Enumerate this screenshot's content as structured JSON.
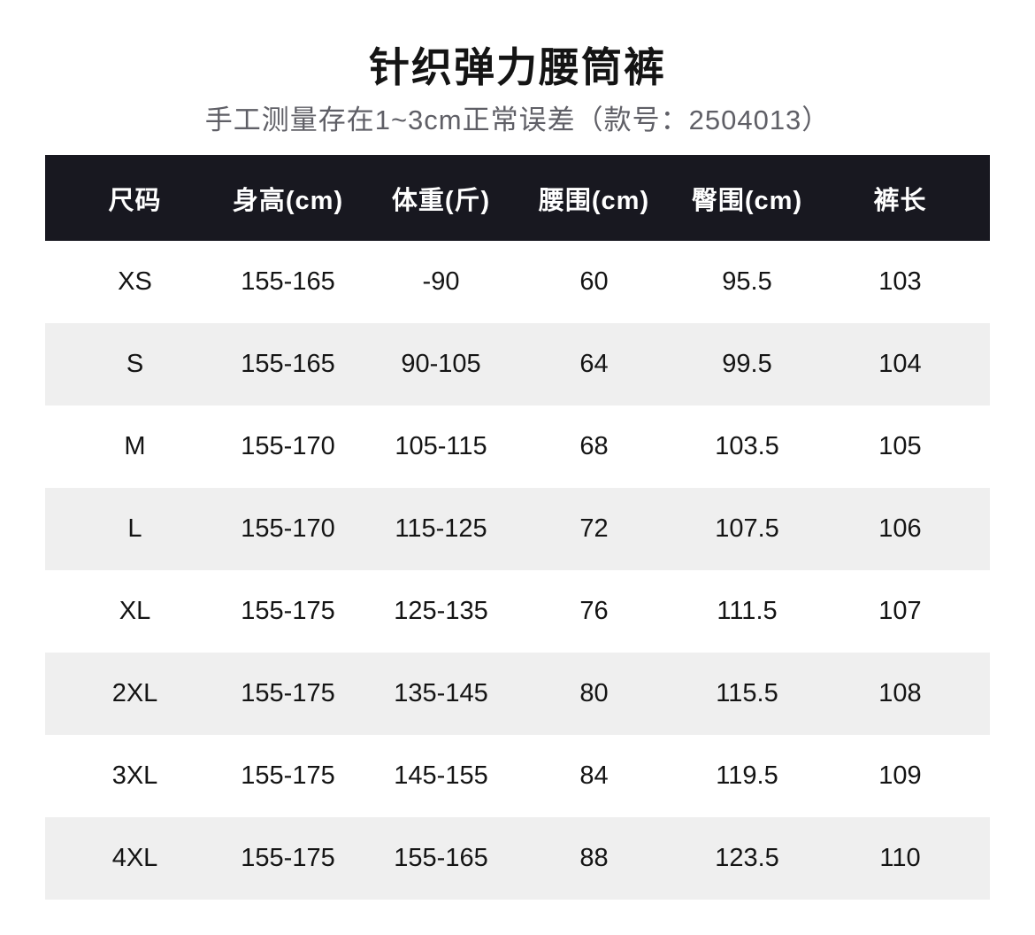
{
  "page": {
    "title": "针织弹力腰筒裤",
    "subtitle": "手工测量存在1~3cm正常误差（款号：2504013）",
    "model_number": "2504013"
  },
  "colors": {
    "header_bg": "#181820",
    "header_text": "#ffffff",
    "row_alt_bg": "#efefef",
    "body_text": "#141414",
    "subtitle_text": "#5f5f66",
    "page_bg": "#ffffff"
  },
  "size_table": {
    "headers": [
      "尺码",
      "身高(cm)",
      "体重(斤)",
      "腰围(cm)",
      "臀围(cm)",
      "裤长"
    ],
    "rows": [
      [
        "XS",
        "155-165",
        "-90",
        "60",
        "95.5",
        "103"
      ],
      [
        "S",
        "155-165",
        "90-105",
        "64",
        "99.5",
        "104"
      ],
      [
        "M",
        "155-170",
        "105-115",
        "68",
        "103.5",
        "105"
      ],
      [
        "L",
        "155-170",
        "115-125",
        "72",
        "107.5",
        "106"
      ],
      [
        "XL",
        "155-175",
        "125-135",
        "76",
        "111.5",
        "107"
      ],
      [
        "2XL",
        "155-175",
        "135-145",
        "80",
        "115.5",
        "108"
      ],
      [
        "3XL",
        "155-175",
        "145-155",
        "84",
        "119.5",
        "109"
      ],
      [
        "4XL",
        "155-175",
        "155-165",
        "88",
        "123.5",
        "110"
      ]
    ]
  }
}
